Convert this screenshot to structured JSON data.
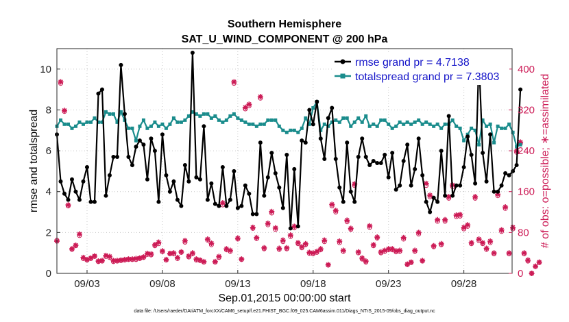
{
  "chart_data": {
    "type": "line",
    "title": "Southern Hemisphere",
    "subtitle": "SAT_U_WIND_COMPONENT @ 200 hPa",
    "xlabel": "Sep.01,2015 00:00:00 start",
    "ylabel": "rmse and totalspread",
    "ylabel_right": "# of obs: o=possible; ∗=assimilated",
    "footer": "data file: /Users/raeder/DAI/ATM_forcXX/CAM6_setup/f.e21.FHIST_BGC.f09_025.CAM6assim.011/Diags_NTrS_2015-09/obs_diag_output.nc",
    "xlim": [
      1.0,
      31.2
    ],
    "ylim": [
      0,
      11
    ],
    "ylim_right": [
      0,
      440
    ],
    "x_ticks": [
      3,
      8,
      13,
      18,
      23,
      28
    ],
    "x_tick_labels": [
      "09/03",
      "09/08",
      "09/13",
      "09/18",
      "09/23",
      "09/28"
    ],
    "y_ticks": [
      0,
      2,
      4,
      6,
      8,
      10
    ],
    "y_tick_labels": [
      "0",
      "2",
      "4",
      "6",
      "8",
      "10"
    ],
    "y_ticks_right": [
      0,
      80,
      160,
      240,
      320,
      400
    ],
    "y_tick_labels_right": [
      "0",
      "80",
      "160",
      "240",
      "320",
      "400"
    ],
    "legend": [
      {
        "name": "rmse grand pr = 4.7138",
        "color": "#000000"
      },
      {
        "name": "totalspread grand pr = 7.3803",
        "color": "#1a8c8c"
      }
    ],
    "series": [
      {
        "name": "rmse",
        "color": "#000000",
        "start_day": 1.0,
        "step_days": 0.25,
        "values": [
          6.8,
          4.5,
          3.9,
          3.6,
          4.6,
          4.0,
          3.6,
          4.5,
          5.2,
          3.5,
          3.5,
          8.8,
          9.0,
          3.8,
          4.8,
          5.7,
          5.7,
          10.2,
          7.8,
          5.7,
          5.3,
          6.2,
          6.5,
          6.3,
          4.6,
          6.6,
          6.0,
          3.5,
          6.8,
          4.8,
          4.0,
          4.5,
          3.6,
          3.3,
          5.3,
          4.5,
          10.8,
          4.7,
          4.6,
          7.2,
          3.6,
          4.4,
          3.4,
          3.3,
          5.2,
          3.3,
          3.6,
          5.0,
          3.2,
          3.3,
          4.3,
          3.9,
          2.9,
          2.9,
          6.4,
          3.8,
          4.7,
          5.9,
          4.9,
          4.2,
          3.2,
          5.8,
          2.2,
          5.1,
          2.3,
          6.5,
          6.4,
          8.0,
          7.3,
          8.4,
          6.6,
          5.6,
          7.6,
          8.1,
          5.6,
          4.2,
          3.5,
          6.4,
          4.0,
          3.5,
          5.7,
          6.6,
          5.7,
          5.3,
          5.5,
          5.4,
          5.4,
          5.8,
          4.7,
          5.9,
          4.1,
          4.3,
          5.5,
          6.3,
          4.3,
          5.1,
          6.6,
          4.8,
          3.5,
          3.0,
          3.7,
          3.5,
          6.0,
          3.8,
          7.7,
          3.8,
          4.3,
          4.3,
          5.2,
          6.7,
          5.8,
          4.4,
          10.5,
          5.9,
          4.5,
          6.8,
          4.0,
          4.0,
          4.3,
          4.9,
          4.8,
          5.0,
          5.3,
          9.0
        ]
      },
      {
        "name": "totalspread",
        "color": "#1a8c8c",
        "start_day": 1.0,
        "step_days": 0.25,
        "values": [
          7.2,
          7.5,
          7.3,
          7.3,
          7.1,
          7.2,
          7.4,
          7.3,
          7.4,
          7.4,
          7.6,
          7.4,
          7.4,
          7.9,
          7.8,
          7.8,
          7.4,
          7.9,
          7.5,
          7.1,
          7.1,
          6.5,
          7.2,
          7.5,
          7.1,
          7.2,
          7.4,
          7.2,
          7.3,
          7.1,
          7.3,
          7.6,
          7.4,
          7.4,
          7.5,
          7.7,
          7.9,
          7.8,
          7.7,
          7.8,
          7.8,
          7.6,
          7.7,
          7.5,
          7.4,
          7.5,
          7.7,
          7.8,
          7.6,
          7.5,
          7.4,
          7.3,
          7.3,
          7.2,
          7.3,
          7.3,
          7.5,
          7.5,
          7.5,
          7.2,
          7.0,
          6.9,
          7.0,
          7.0,
          6.9,
          7.1,
          7.6,
          7.3,
          8.1,
          8.4,
          7.0,
          7.3,
          7.2,
          7.4,
          7.5,
          7.4,
          7.6,
          7.6,
          7.2,
          7.4,
          7.6,
          7.4,
          7.7,
          7.2,
          7.3,
          7.2,
          7.5,
          7.5,
          7.3,
          7.1,
          7.2,
          7.4,
          7.3,
          7.4,
          7.3,
          7.4,
          7.5,
          7.3,
          7.4,
          7.3,
          7.2,
          7.3,
          7.1,
          7.3,
          7.3,
          7.5,
          7.2,
          7.1,
          6.5,
          6.8,
          7.1,
          7.0,
          6.3,
          7.5,
          7.2,
          7.3,
          6.4,
          7.2,
          7.1,
          7.1,
          7.3,
          6.9,
          6.2,
          6.3
        ]
      },
      {
        "name": "obs assimilated",
        "axis": "right",
        "color": "#cc1a55",
        "start_day": 1.0,
        "step_days": 0.25,
        "values": [
          63,
          375,
          319,
          134,
          48,
          55,
          77,
          31,
          27,
          30,
          34,
          24,
          25,
          35,
          33,
          25,
          25,
          26,
          27,
          28,
          28,
          29,
          30,
          32,
          39,
          38,
          56,
          61,
          44,
          27,
          39,
          40,
          31,
          42,
          64,
          34,
          40,
          28,
          26,
          23,
          67,
          59,
          23,
          33,
          138,
          48,
          45,
          375,
          69,
          28,
          325,
          331,
          90,
          70,
          346,
          50,
          98,
          121,
          89,
          49,
          65,
          50,
          75,
          92,
          60,
          52,
          58,
          41,
          40,
          43,
          48,
          65,
          17,
          135,
          123,
          63,
          45,
          104,
          88,
          175,
          42,
          30,
          24,
          93,
          56,
          71,
          42,
          45,
          48,
          48,
          44,
          45,
          70,
          18,
          22,
          45,
          80,
          25,
          176,
          153,
          54,
          105,
          58,
          105,
          150,
          173,
          114,
          115,
          90,
          95,
          60,
          150,
          67,
          60,
          49,
          63,
          40,
          155,
          85,
          130,
          40,
          90,
          240,
          257,
          40,
          26,
          0,
          14,
          22
        ]
      },
      {
        "name": "obs possible",
        "axis": "right",
        "color": "#cc1a55",
        "start_day": 1.0,
        "step_days": 0.25,
        "values": [
          65,
          372,
          317,
          132,
          47,
          54,
          74,
          29,
          26,
          29,
          33,
          23,
          24,
          33,
          31,
          23,
          24,
          25,
          26,
          27,
          27,
          27,
          29,
          31,
          37,
          36,
          54,
          58,
          42,
          26,
          38,
          38,
          29,
          41,
          61,
          32,
          38,
          26,
          25,
          22,
          65,
          56,
          22,
          31,
          134,
          46,
          43,
          372,
          67,
          27,
          322,
          328,
          88,
          68,
          343,
          48,
          95,
          118,
          86,
          47,
          62,
          48,
          72,
          89,
          58,
          50,
          56,
          39,
          38,
          41,
          46,
          62,
          16,
          132,
          120,
          60,
          43,
          101,
          86,
          172,
          40,
          28,
          22,
          90,
          54,
          69,
          40,
          43,
          46,
          46,
          42,
          43,
          67,
          17,
          21,
          43,
          77,
          24,
          172,
          150,
          52,
          102,
          56,
          102,
          147,
          170,
          111,
          112,
          87,
          92,
          58,
          147,
          64,
          58,
          47,
          60,
          38,
          152,
          82,
          127,
          38,
          87,
          237,
          254,
          38,
          24,
          0,
          13,
          21
        ]
      }
    ]
  }
}
